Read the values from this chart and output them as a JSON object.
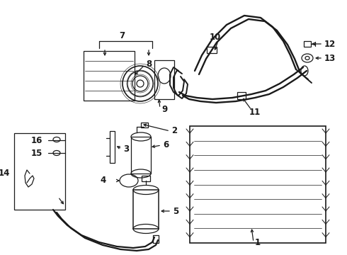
{
  "bg_color": "#ffffff",
  "line_color": "#1a1a1a",
  "fig_width": 4.9,
  "fig_height": 3.6,
  "dpi": 100,
  "lw": 0.9
}
